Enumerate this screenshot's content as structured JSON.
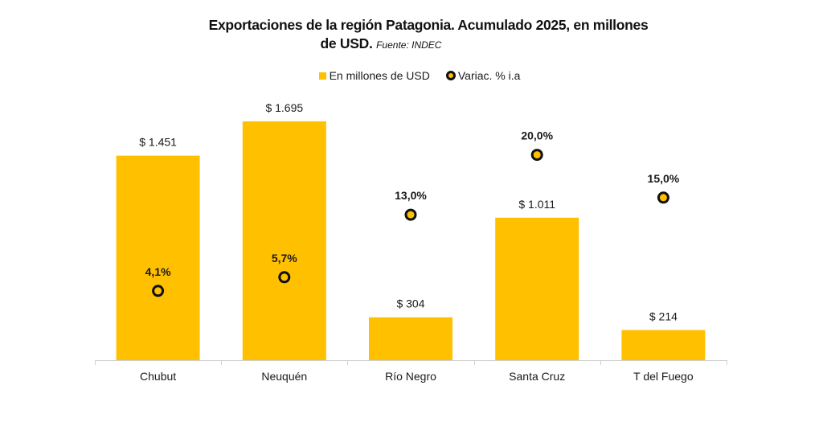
{
  "chart_data": {
    "type": "bar",
    "title": "Exportaciones de la región Patagonia. Acumulado 2025, en millones",
    "title_line2": "de USD.",
    "source": "Fuente: INDEC",
    "categories": [
      "Chubut",
      "Neuquén",
      "Río Negro",
      "Santa Cruz",
      "T del Fuego"
    ],
    "series": [
      {
        "name": "En millones de USD",
        "type": "bar",
        "axis": "left",
        "values": [
          1451,
          1695,
          304,
          1011,
          214
        ],
        "labels": [
          "$ 1.451",
          "$ 1.695",
          "$ 304",
          "$ 1.011",
          "$ 214"
        ],
        "color": "#FFC000"
      },
      {
        "name": "Variac. % i.a",
        "type": "scatter",
        "axis": "right",
        "values": [
          4.1,
          5.7,
          13.0,
          20.0,
          15.0
        ],
        "labels": [
          "4,1%",
          "5,7%",
          "13,0%",
          "20,0%",
          "15,0%"
        ],
        "marker_fill": "#FFC000",
        "marker_stroke": "#111111"
      }
    ],
    "y_left_range": [
      0,
      1700
    ],
    "y_right_range": [
      -4,
      24
    ],
    "grid": false,
    "legend_position": "top-center",
    "xlabel": "",
    "ylabel": ""
  },
  "legend": {
    "bar_label": "En millones de USD",
    "marker_label": "Variac. % i.a"
  }
}
